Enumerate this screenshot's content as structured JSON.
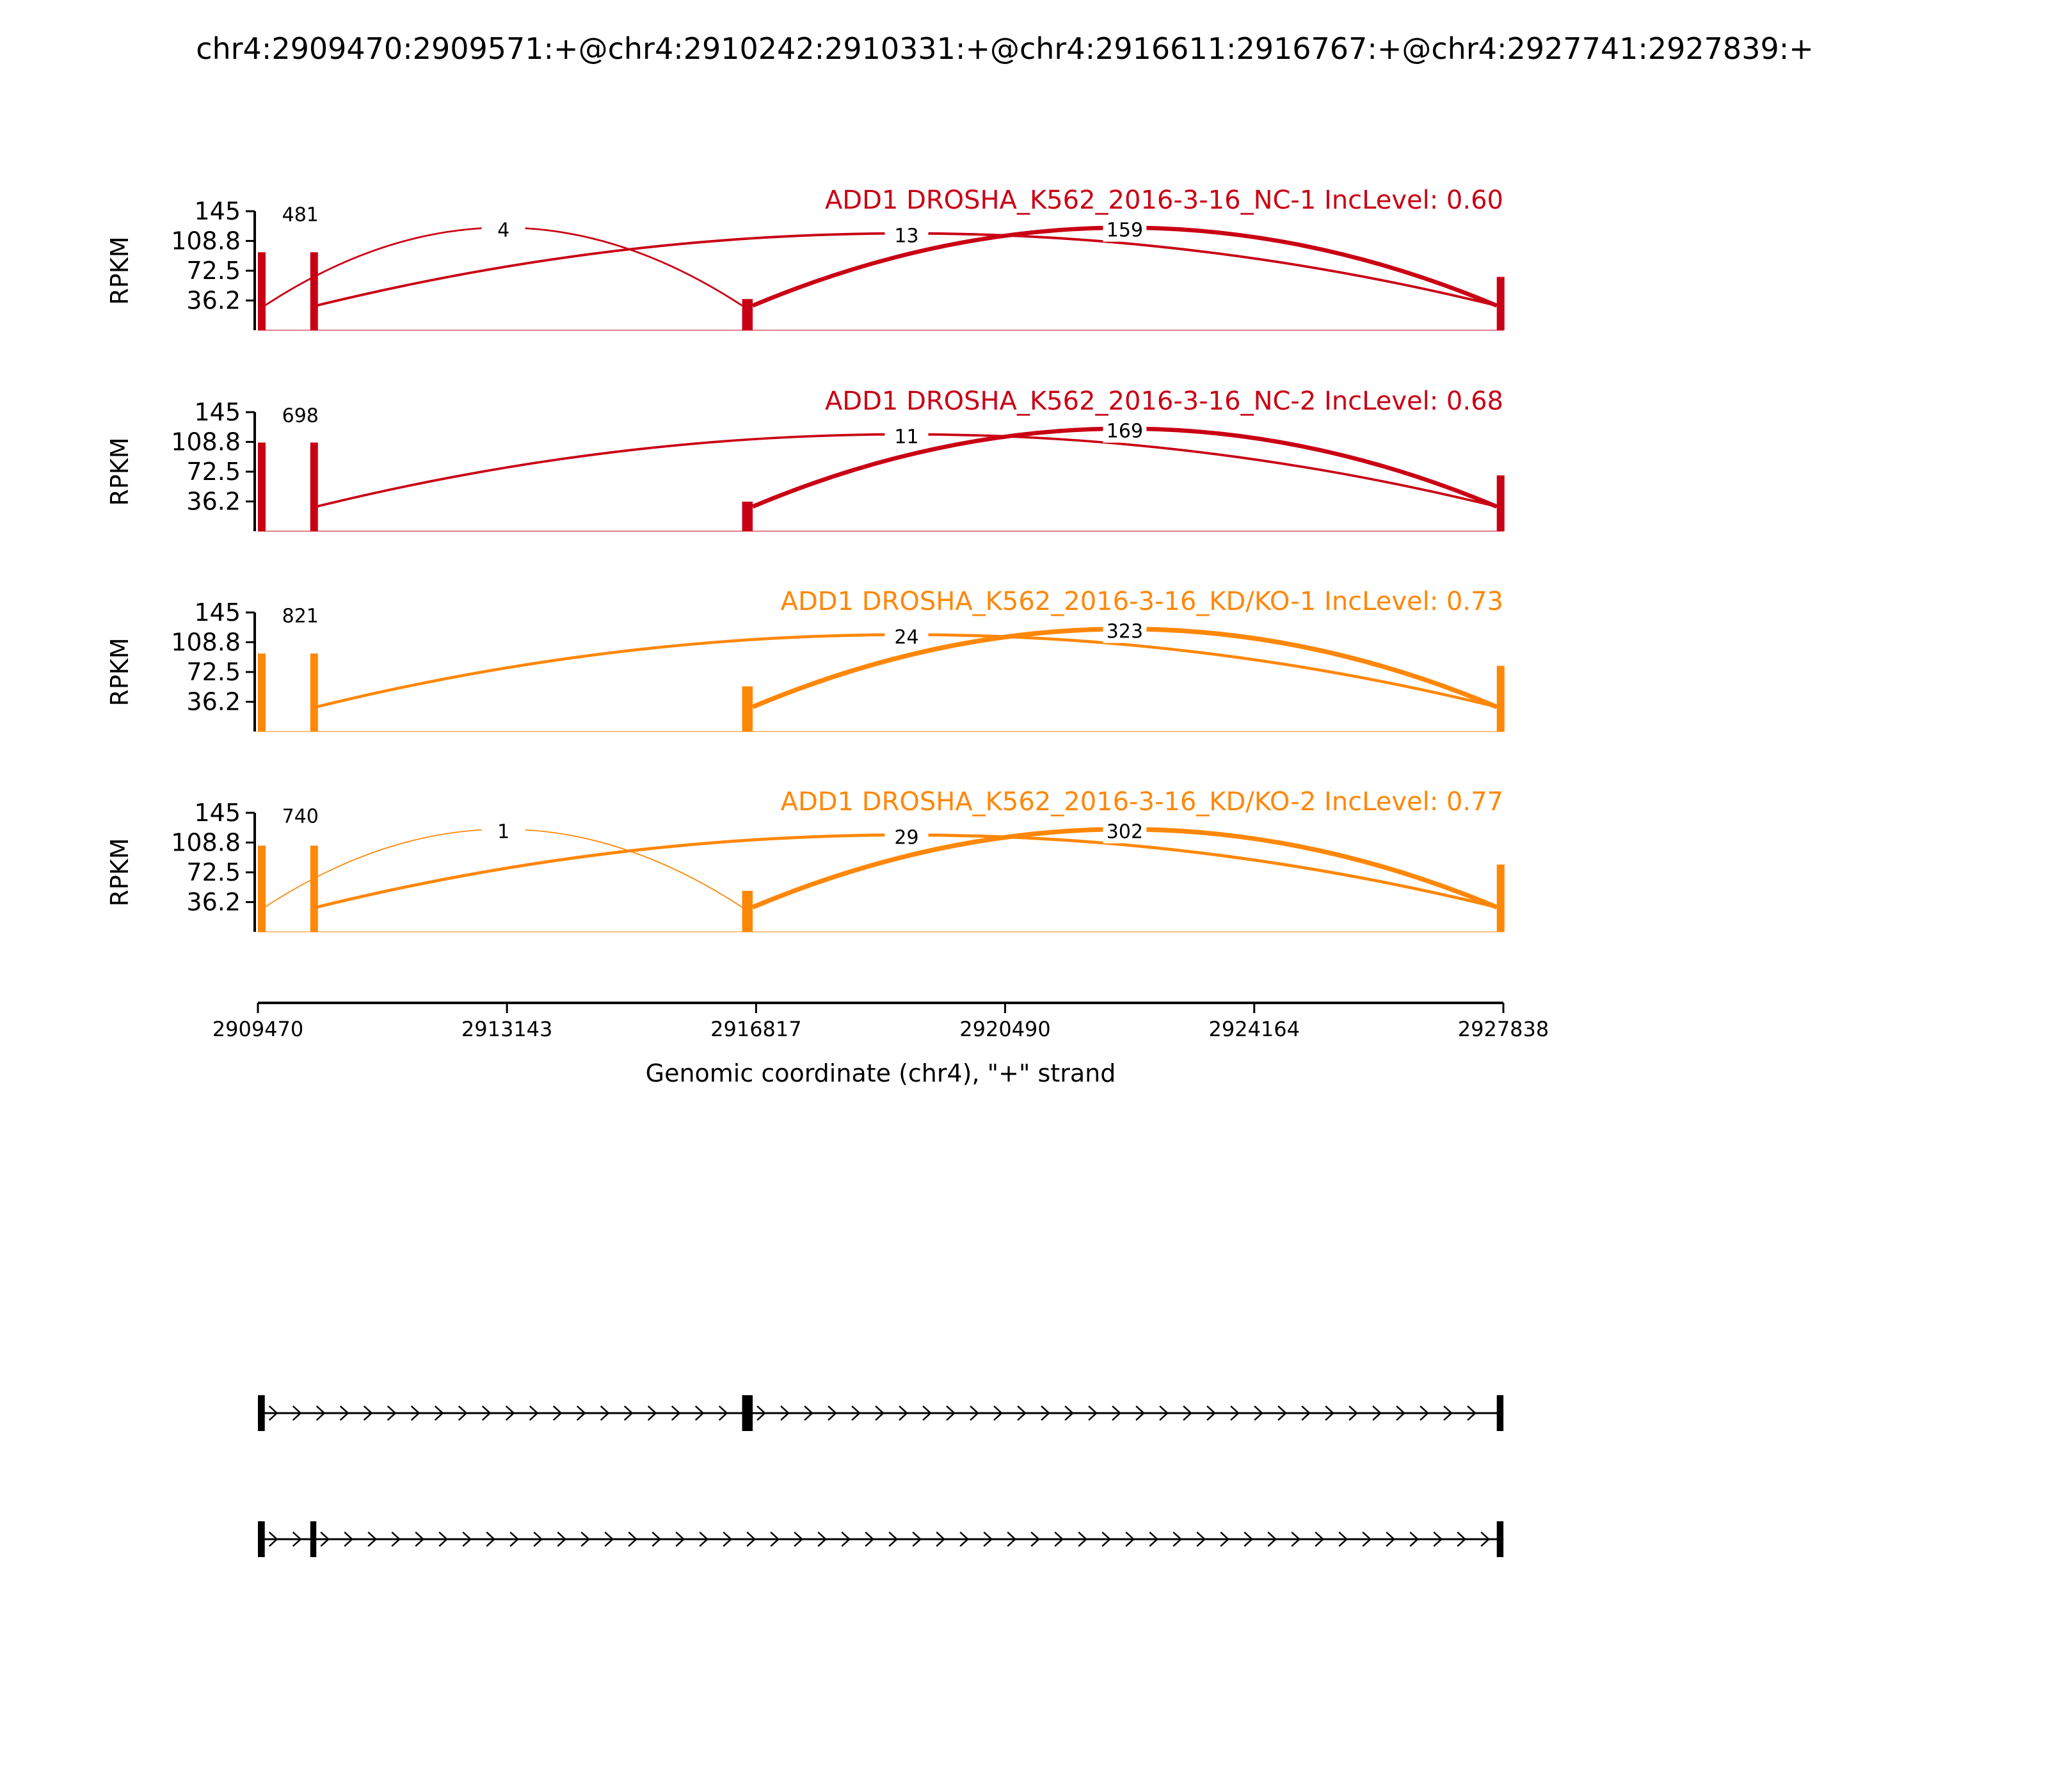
{
  "title": "chr4:2909470:2909571:+@chr4:2910242:2910331:+@chr4:2916611:2916767:+@chr4:2927741:2927839:+",
  "chart_data": {
    "type": "area",
    "title": "chr4:2909470:2909571:+@chr4:2910242:2910331:+@chr4:2916611:2916767:+@chr4:2927741:2927839:+",
    "xlabel": "Genomic coordinate (chr4), \"+\" strand",
    "ylabel": "RPKM",
    "xlim": [
      2909470,
      2927838
    ],
    "x_ticks": [
      "2909470",
      "2913143",
      "2916817",
      "2920490",
      "2924164",
      "2927838"
    ],
    "ylim": [
      0,
      145
    ],
    "y_ticks": [
      "145",
      "108.8",
      "72.5",
      "36.2"
    ],
    "exons": [
      [
        2909470,
        2909571
      ],
      [
        2910242,
        2910331
      ],
      [
        2916611,
        2916767
      ],
      [
        2927741,
        2927839
      ]
    ],
    "series": [
      {
        "name": "ADD1 DROSHA_K562_2016-3-16_NC-1 IncLevel: 0.60",
        "color": "#c90014",
        "peak_heights": [
          95,
          95,
          38,
          65
        ],
        "junctions": [
          {
            "from": 2909571,
            "to": 2910242,
            "count": "481"
          },
          {
            "from": 2909571,
            "to": 2916611,
            "count": "4"
          },
          {
            "from": 2910331,
            "to": 2927741,
            "count": "13"
          },
          {
            "from": 2916767,
            "to": 2927741,
            "count": "159"
          }
        ]
      },
      {
        "name": "ADD1 DROSHA_K562_2016-3-16_NC-2 IncLevel: 0.68",
        "color": "#c90014",
        "peak_heights": [
          108,
          108,
          36,
          68
        ],
        "junctions": [
          {
            "from": 2909571,
            "to": 2910242,
            "count": "698"
          },
          {
            "from": 2910331,
            "to": 2927741,
            "count": "11"
          },
          {
            "from": 2916767,
            "to": 2927741,
            "count": "169"
          }
        ]
      },
      {
        "name": "ADD1 DROSHA_K562_2016-3-16_KD/KO-1 IncLevel: 0.73",
        "color": "#ff8708",
        "peak_heights": [
          95,
          95,
          55,
          80
        ],
        "junctions": [
          {
            "from": 2909571,
            "to": 2910242,
            "count": "821"
          },
          {
            "from": 2910331,
            "to": 2927741,
            "count": "24"
          },
          {
            "from": 2916767,
            "to": 2927741,
            "count": "323"
          }
        ]
      },
      {
        "name": "ADD1 DROSHA_K562_2016-3-16_KD/KO-2 IncLevel: 0.77",
        "color": "#ff8708",
        "peak_heights": [
          105,
          105,
          50,
          82
        ],
        "junctions": [
          {
            "from": 2909571,
            "to": 2910242,
            "count": "740"
          },
          {
            "from": 2909571,
            "to": 2916611,
            "count": "1"
          },
          {
            "from": 2910331,
            "to": 2927741,
            "count": "29"
          },
          {
            "from": 2916767,
            "to": 2927741,
            "count": "302"
          }
        ]
      }
    ],
    "transcripts": [
      [
        [
          2909470,
          2909571
        ],
        [
          2916611,
          2916767
        ],
        [
          2927741,
          2927839
        ]
      ],
      [
        [
          2909470,
          2909571
        ],
        [
          2910242,
          2910331
        ],
        [
          2927741,
          2927839
        ]
      ]
    ],
    "grid": false
  }
}
